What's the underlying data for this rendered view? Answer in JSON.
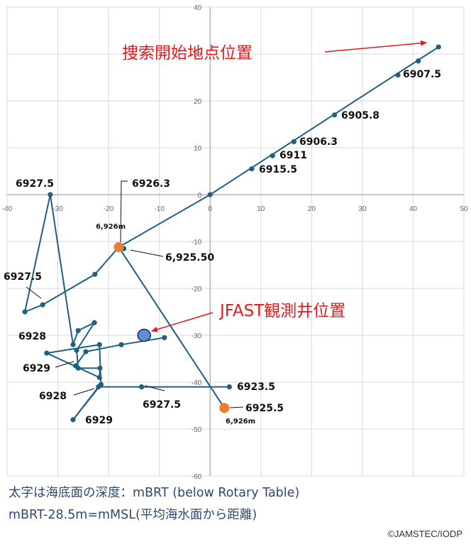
{
  "chart_data": {
    "type": "scatter",
    "xlim": [
      -40,
      50
    ],
    "ylim": [
      -60,
      40
    ],
    "x_ticks": [
      -40,
      -30,
      -20,
      -10,
      0,
      10,
      20,
      30,
      40,
      50
    ],
    "y_ticks": [
      40,
      30,
      20,
      10,
      0,
      -10,
      -20,
      -30,
      -40,
      -50,
      -60
    ],
    "grid": true,
    "line_color": "#1f5f82",
    "point_color": "#1f5f82",
    "highlight_color": "#ed7d31",
    "well_color": "#5b8fd6",
    "path_points": [
      [
        45,
        31.5
      ],
      [
        41,
        28.5
      ],
      [
        37,
        25.5
      ],
      [
        24.5,
        17
      ],
      [
        16.5,
        11.3
      ],
      [
        12.3,
        8.3
      ],
      [
        8.2,
        5.5
      ],
      [
        0,
        0
      ],
      [
        -18,
        -11.2
      ],
      [
        -22.7,
        -17
      ],
      [
        -33,
        -23.5
      ],
      [
        -36.5,
        -25
      ],
      [
        -31.5,
        0
      ],
      [
        -27,
        -32
      ],
      [
        -26,
        -29
      ],
      [
        -22.8,
        -27.3
      ],
      [
        -26.3,
        -33.2
      ],
      [
        -26,
        -37
      ],
      [
        -21.7,
        -37
      ],
      [
        -21.8,
        -39
      ],
      [
        -32.2,
        -33.8
      ],
      [
        -21.8,
        -32
      ],
      [
        -21.5,
        -40.5
      ],
      [
        -27,
        -48
      ],
      [
        -22,
        -41
      ],
      [
        -13.5,
        -41
      ],
      [
        3.8,
        -41
      ],
      [
        -17,
        -11.5
      ],
      [
        2.8,
        -45.5
      ],
      [
        -26.5,
        -36.5
      ],
      [
        -24.5,
        -33.5
      ],
      [
        -17.5,
        -32
      ],
      [
        -9,
        -30.5
      ]
    ],
    "path_segments": [
      [
        0,
        7
      ],
      [
        7,
        8
      ],
      [
        8,
        9
      ],
      [
        9,
        10
      ],
      [
        10,
        11
      ],
      [
        11,
        12
      ],
      [
        12,
        13
      ],
      [
        13,
        14
      ],
      [
        14,
        15
      ],
      [
        15,
        16
      ],
      [
        16,
        17
      ],
      [
        17,
        18
      ],
      [
        18,
        19
      ],
      [
        19,
        20
      ],
      [
        20,
        21
      ],
      [
        21,
        22
      ],
      [
        22,
        23
      ],
      [
        23,
        24
      ],
      [
        24,
        25
      ],
      [
        25,
        26
      ],
      [
        8,
        28
      ],
      [
        29,
        30
      ],
      [
        30,
        31
      ],
      [
        31,
        32
      ]
    ],
    "highlight_points": [
      {
        "x": -18,
        "y": -11.2
      },
      {
        "x": 2.8,
        "y": -45.5
      }
    ],
    "well": {
      "x": -13,
      "y": -30
    },
    "annotations": [
      {
        "text": "6907.5"
      },
      {
        "text": "6905.8"
      },
      {
        "text": "6906.3"
      },
      {
        "text": "6911"
      },
      {
        "text": "6915.5"
      },
      {
        "text": "6927.5"
      },
      {
        "text": "6926.3"
      },
      {
        "text": "6,926m"
      },
      {
        "text": "6,925.50"
      },
      {
        "text": "6927.5"
      },
      {
        "text": "6928"
      },
      {
        "text": "6929"
      },
      {
        "text": "6928"
      },
      {
        "text": "6929"
      },
      {
        "text": "6927.5"
      },
      {
        "text": "6923.5"
      },
      {
        "text": "6925.5"
      },
      {
        "text": "6,926m"
      }
    ],
    "callouts": {
      "search_start": "捜索開始地点位置",
      "well_position": "JFAST観測井位置"
    }
  },
  "caption": {
    "line1": "太字は海底面の深度：mBRT (below Rotary Table)",
    "line2": "mBRT-28.5m=mMSL(平均海水面から距離)"
  },
  "credit": "©JAMSTEC/IODP"
}
